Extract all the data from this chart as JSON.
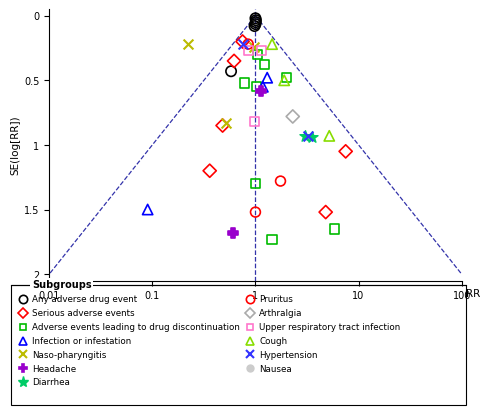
{
  "xlabel": "RR",
  "ylabel": "SE(log[RR])",
  "x_ticks": [
    0.01,
    0.1,
    1,
    10,
    100
  ],
  "x_tick_labels": [
    "0.01",
    "0.1",
    "1",
    "10",
    "100"
  ],
  "y_ticks": [
    0,
    0.5,
    1,
    1.5,
    2
  ],
  "y_tick_labels": [
    "0",
    "0.5",
    "1",
    "1.5",
    "2"
  ],
  "points": {
    "any_adverse": {
      "marker": "o",
      "color": "black",
      "facecolor": "none",
      "size": 55,
      "lw": 1.2,
      "data": [
        [
          1.0,
          0.02
        ],
        [
          1.01,
          0.035
        ],
        [
          1.005,
          0.05
        ],
        [
          1.0,
          0.065
        ],
        [
          0.98,
          0.08
        ],
        [
          0.58,
          0.43
        ]
      ]
    },
    "serious_adverse": {
      "marker": "D",
      "color": "red",
      "facecolor": "none",
      "size": 45,
      "lw": 1.2,
      "data": [
        [
          0.62,
          0.35
        ],
        [
          0.75,
          0.2
        ],
        [
          0.48,
          0.85
        ],
        [
          0.36,
          1.2
        ],
        [
          7.5,
          1.05
        ],
        [
          4.8,
          1.52
        ]
      ]
    },
    "drug_discontinuation": {
      "marker": "s",
      "color": "#00bb00",
      "facecolor": "none",
      "size": 45,
      "lw": 1.2,
      "data": [
        [
          0.78,
          0.52
        ],
        [
          1.05,
          0.3
        ],
        [
          1.22,
          0.38
        ],
        [
          1.02,
          0.55
        ],
        [
          2.0,
          0.48
        ],
        [
          1.0,
          1.3
        ],
        [
          1.45,
          1.73
        ],
        [
          5.8,
          1.65
        ]
      ]
    },
    "infection": {
      "marker": "^",
      "color": "blue",
      "facecolor": "none",
      "size": 55,
      "lw": 1.2,
      "data": [
        [
          0.09,
          1.5
        ],
        [
          1.18,
          0.55
        ],
        [
          1.3,
          0.48
        ]
      ]
    },
    "nasopharyngitis": {
      "marker": "x",
      "color": "#bbbb00",
      "facecolor": "#bbbb00",
      "size": 50,
      "lw": 1.5,
      "data": [
        [
          0.22,
          0.22
        ],
        [
          0.52,
          0.83
        ],
        [
          0.97,
          0.24
        ]
      ]
    },
    "headache": {
      "marker": "P",
      "color": "#9900cc",
      "facecolor": "#9900cc",
      "size": 55,
      "lw": 1.2,
      "data": [
        [
          1.12,
          0.58
        ],
        [
          0.6,
          1.68
        ]
      ]
    },
    "diarrhea": {
      "marker": "*",
      "color": "#00cc66",
      "facecolor": "#00cc66",
      "size": 70,
      "lw": 1.0,
      "data": [
        [
          3.0,
          0.93
        ],
        [
          3.5,
          0.94
        ]
      ]
    },
    "pruritus": {
      "marker": "o",
      "color": "red",
      "facecolor": "none",
      "size": 50,
      "lw": 1.2,
      "data": [
        [
          0.85,
          0.22
        ],
        [
          1.75,
          1.28
        ],
        [
          1.0,
          1.52
        ]
      ]
    },
    "arthralgia": {
      "marker": "D",
      "color": "#aaaaaa",
      "facecolor": "none",
      "size": 45,
      "lw": 1.2,
      "data": [
        [
          2.3,
          0.78
        ]
      ]
    },
    "upper_resp": {
      "marker": "s",
      "color": "#ff77cc",
      "facecolor": "none",
      "size": 45,
      "lw": 1.2,
      "data": [
        [
          0.85,
          0.27
        ],
        [
          1.15,
          0.27
        ],
        [
          0.98,
          0.82
        ]
      ]
    },
    "cough": {
      "marker": "^",
      "color": "#88dd00",
      "facecolor": "none",
      "size": 55,
      "lw": 1.2,
      "data": [
        [
          1.45,
          0.22
        ],
        [
          1.9,
          0.5
        ],
        [
          5.2,
          0.93
        ]
      ]
    },
    "hypertension": {
      "marker": "x",
      "color": "#3333ff",
      "facecolor": "#3333ff",
      "size": 50,
      "lw": 1.5,
      "data": [
        [
          0.75,
          0.22
        ],
        [
          3.2,
          0.93
        ]
      ]
    },
    "nausea": {
      "marker": "o",
      "color": "#cccccc",
      "facecolor": "#cccccc",
      "size": 45,
      "lw": 1.0,
      "data": []
    }
  },
  "legend_entries_left": [
    {
      "label": "Any adverse drug event",
      "marker": "o",
      "color": "black",
      "facecolor": "none",
      "ms": 6,
      "lw": 1.2
    },
    {
      "label": "Serious adverse events",
      "marker": "D",
      "color": "red",
      "facecolor": "none",
      "ms": 5,
      "lw": 1.2
    },
    {
      "label": "Adverse events leading to drug discontinuation",
      "marker": "s",
      "color": "#00bb00",
      "facecolor": "none",
      "ms": 5,
      "lw": 1.2
    },
    {
      "label": "Infection or infestation",
      "marker": "^",
      "color": "blue",
      "facecolor": "none",
      "ms": 6,
      "lw": 1.2
    },
    {
      "label": "Naso-pharyngitis",
      "marker": "x",
      "color": "#bbbb00",
      "facecolor": "#bbbb00",
      "ms": 6,
      "lw": 1.5
    },
    {
      "label": "Headache",
      "marker": "P",
      "color": "#9900cc",
      "facecolor": "#9900cc",
      "ms": 6,
      "lw": 1.2
    },
    {
      "label": "Diarrhea",
      "marker": "*",
      "color": "#00cc66",
      "facecolor": "#00cc66",
      "ms": 8,
      "lw": 1.0
    }
  ],
  "legend_entries_right": [
    {
      "label": "Pruritus",
      "marker": "o",
      "color": "red",
      "facecolor": "none",
      "ms": 6,
      "lw": 1.2
    },
    {
      "label": "Arthralgia",
      "marker": "D",
      "color": "#aaaaaa",
      "facecolor": "none",
      "ms": 5,
      "lw": 1.2
    },
    {
      "label": "Upper respiratory tract infection",
      "marker": "s",
      "color": "#ff77cc",
      "facecolor": "none",
      "ms": 5,
      "lw": 1.2
    },
    {
      "label": "Cough",
      "marker": "^",
      "color": "#88dd00",
      "facecolor": "none",
      "ms": 6,
      "lw": 1.2
    },
    {
      "label": "Hypertension",
      "marker": "x",
      "color": "#3333ff",
      "facecolor": "#3333ff",
      "ms": 6,
      "lw": 1.5
    },
    {
      "label": "Nausea",
      "marker": "o",
      "color": "#cccccc",
      "facecolor": "#cccccc",
      "ms": 5,
      "lw": 1.0
    }
  ]
}
